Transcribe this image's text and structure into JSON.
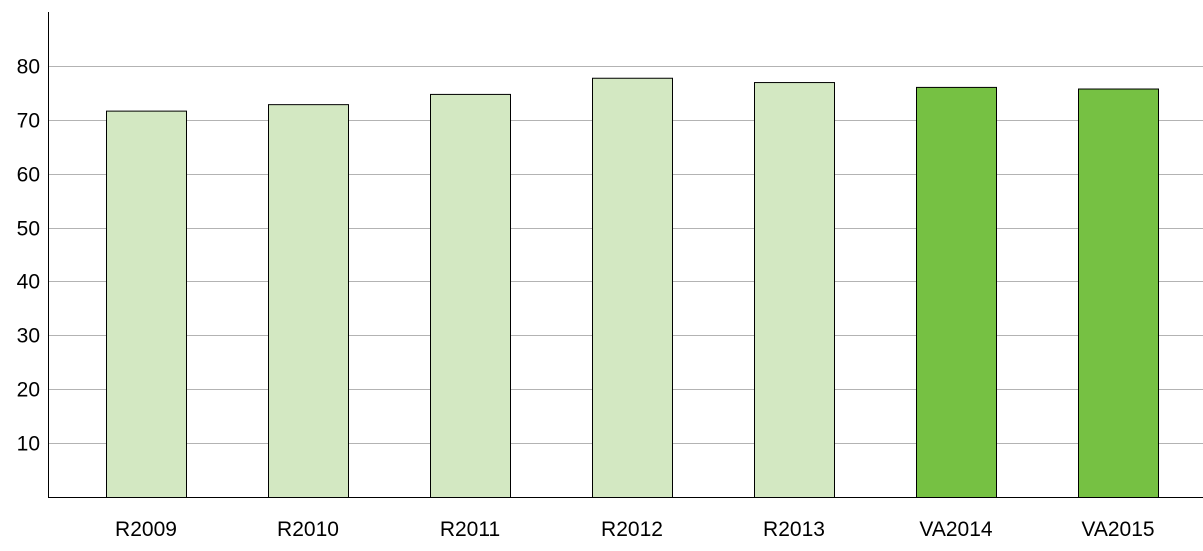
{
  "chart_data": {
    "type": "bar",
    "title": "",
    "xlabel": "",
    "ylabel": "",
    "categories": [
      "R2009",
      "R2010",
      "R2011",
      "R2012",
      "R2013",
      "VA2014",
      "VA2015"
    ],
    "values": [
      71.7,
      72.9,
      74.8,
      77.8,
      77.0,
      76.1,
      75.8
    ],
    "ylim": [
      0,
      90
    ],
    "yticks": [
      10,
      20,
      30,
      40,
      50,
      60,
      70,
      80
    ],
    "ytick_labels": [
      "10",
      "20",
      "30",
      "40",
      "50",
      "60",
      "70",
      "80"
    ],
    "grid": true,
    "bar_colors": [
      "#d3e8c2",
      "#d3e8c2",
      "#d3e8c2",
      "#d3e8c2",
      "#d3e8c2",
      "#76c143",
      "#76c143"
    ],
    "gridline_color": "#b3b3b3",
    "axis_color": "#000000"
  }
}
